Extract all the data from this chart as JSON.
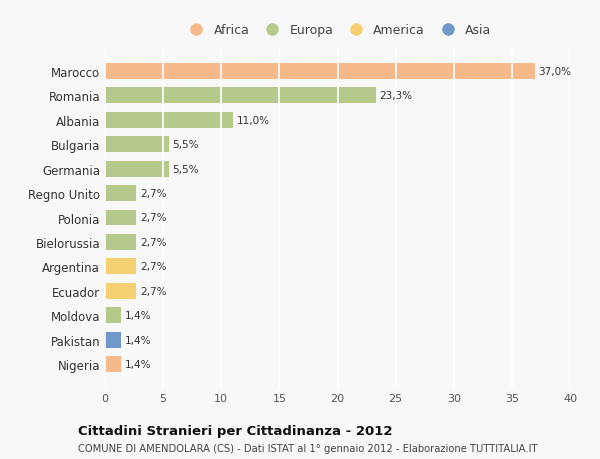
{
  "countries": [
    "Marocco",
    "Romania",
    "Albania",
    "Bulgaria",
    "Germania",
    "Regno Unito",
    "Polonia",
    "Bielorussia",
    "Argentina",
    "Ecuador",
    "Moldova",
    "Pakistan",
    "Nigeria"
  ],
  "values": [
    37.0,
    23.3,
    11.0,
    5.5,
    5.5,
    2.7,
    2.7,
    2.7,
    2.7,
    2.7,
    1.4,
    1.4,
    1.4
  ],
  "labels": [
    "37,0%",
    "23,3%",
    "11,0%",
    "5,5%",
    "5,5%",
    "2,7%",
    "2,7%",
    "2,7%",
    "2,7%",
    "2,7%",
    "1,4%",
    "1,4%",
    "1,4%"
  ],
  "continents": [
    "Africa",
    "Europa",
    "Europa",
    "Europa",
    "Europa",
    "Europa",
    "Europa",
    "Europa",
    "America",
    "America",
    "Europa",
    "Asia",
    "Africa"
  ],
  "colors": {
    "Africa": "#F5B98A",
    "Europa": "#B5C98A",
    "America": "#F5D070",
    "Asia": "#7098C8"
  },
  "legend_order": [
    "Africa",
    "Europa",
    "America",
    "Asia"
  ],
  "xlim": [
    0,
    40
  ],
  "xticks": [
    0,
    5,
    10,
    15,
    20,
    25,
    30,
    35,
    40
  ],
  "title": "Cittadini Stranieri per Cittadinanza - 2012",
  "subtitle": "COMUNE DI AMENDOLARA (CS) - Dati ISTAT al 1° gennaio 2012 - Elaborazione TUTTITALIA.IT",
  "bg_color": "#f8f8f8",
  "plot_bg_color": "#f8f8f8",
  "grid_color": "#ffffff",
  "bar_height": 0.65
}
